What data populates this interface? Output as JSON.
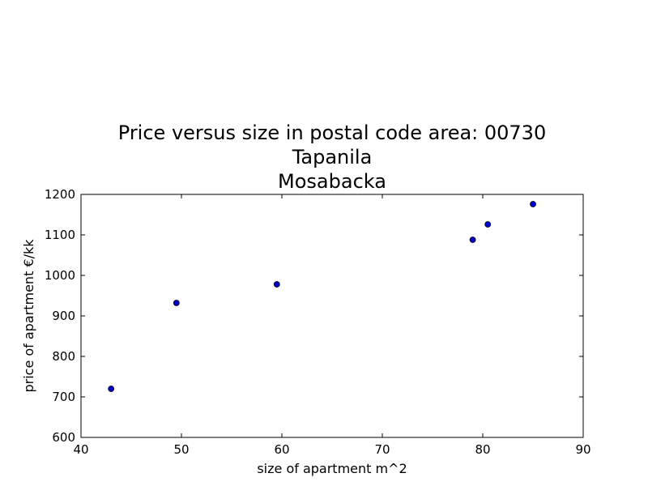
{
  "chart_data": {
    "type": "scatter",
    "title_lines": [
      "Price versus size in postal code area: 00730",
      "Tapanila",
      "Mosabacka"
    ],
    "xlabel": "size of apartment m^2",
    "ylabel": "price of apartment €/kk",
    "xlim": [
      40,
      90
    ],
    "ylim": [
      600,
      1200
    ],
    "xticks": [
      40,
      50,
      60,
      70,
      80,
      90
    ],
    "yticks": [
      600,
      700,
      800,
      900,
      1000,
      1100,
      1200
    ],
    "grid": false,
    "marker_color": "#0000cc",
    "points": [
      {
        "x": 43.0,
        "y": 720
      },
      {
        "x": 49.5,
        "y": 932
      },
      {
        "x": 59.5,
        "y": 978
      },
      {
        "x": 79.0,
        "y": 1088
      },
      {
        "x": 80.5,
        "y": 1126
      },
      {
        "x": 85.0,
        "y": 1176
      }
    ]
  }
}
